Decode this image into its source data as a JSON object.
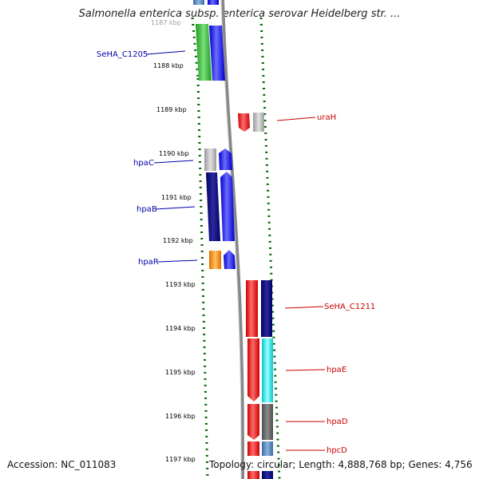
{
  "title": "Salmonella enterica subsp. enterica serovar Heidelberg str. ...",
  "footer": {
    "accession": "Accession: NC_011083",
    "topology": "Topology: circular; Length: 4,888,768 bp; Genes: 4,756"
  },
  "colors": {
    "left_labels": "#0000aa",
    "right_labels": "#cc0000",
    "dots": "#006400",
    "backbone": "#888888"
  },
  "tick_labels": [
    "1187 kbp",
    "1188 kbp",
    "1189 kbp",
    "1190 kbp",
    "1191 kbp",
    "1192 kbp",
    "1193 kbp",
    "1194 kbp",
    "1195 kbp",
    "1196 kbp",
    "1197 kbp"
  ],
  "gene_labels_left": [
    "SeHA_C1205",
    "hpaC",
    "hpaB",
    "hpaR"
  ],
  "gene_labels_right": [
    "uraH",
    "SeHA_C1211",
    "hpaE",
    "hpaD",
    "hpcD"
  ],
  "genes": [
    {
      "name": "SeHA_C1205",
      "strand": "minus",
      "fill": "green"
    },
    {
      "name": "SeHA_C1205",
      "strand": "plus",
      "fill": "blue"
    },
    {
      "name": "uraH",
      "strand": "minus",
      "fill": "red"
    },
    {
      "name": "uraH",
      "strand": "plus",
      "fill": "gray"
    },
    {
      "name": "hpaC",
      "strand": "minus",
      "fill": "gray"
    },
    {
      "name": "hpaC",
      "strand": "plus",
      "fill": "blue"
    },
    {
      "name": "hpaB",
      "strand": "minus",
      "fill": "navy"
    },
    {
      "name": "hpaB",
      "strand": "plus",
      "fill": "blue"
    },
    {
      "name": "hpaR",
      "strand": "minus",
      "fill": "orange"
    },
    {
      "name": "hpaR",
      "strand": "plus",
      "fill": "blue"
    },
    {
      "name": "SeHA_C1211",
      "strand": "minus",
      "fill": "red"
    },
    {
      "name": "SeHA_C1211",
      "strand": "plus",
      "fill": "navy"
    },
    {
      "name": "hpaE",
      "strand": "minus",
      "fill": "red"
    },
    {
      "name": "hpaE",
      "strand": "plus",
      "fill": "cyan"
    },
    {
      "name": "hpaD",
      "strand": "minus",
      "fill": "red"
    },
    {
      "name": "hpaD",
      "strand": "plus",
      "fill": "dimgray"
    },
    {
      "name": "hpcD",
      "strand": "minus",
      "fill": "red"
    },
    {
      "name": "hpcD",
      "strand": "plus",
      "fill": "steelblue"
    }
  ]
}
